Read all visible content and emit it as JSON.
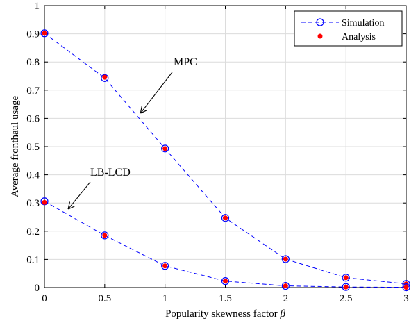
{
  "chart_data": {
    "type": "line",
    "xlabel": "Popularity skewness factor",
    "xlabel_symbol": "β",
    "ylabel": "Average fronthaul usage",
    "xlim": [
      0,
      3
    ],
    "ylim": [
      0,
      1
    ],
    "xticks": [
      "0",
      "0.5",
      "1",
      "1.5",
      "2",
      "2.5",
      "3"
    ],
    "yticks": [
      "0",
      "0.1",
      "0.2",
      "0.3",
      "0.4",
      "0.5",
      "0.6",
      "0.7",
      "0.8",
      "0.9",
      "1"
    ],
    "grid": true,
    "legend_position": "top-right",
    "legend": {
      "simulation": "Simulation",
      "analysis": "Analysis"
    },
    "colors": {
      "simulation": "#0000ff",
      "analysis": "#ff0000"
    },
    "x": [
      0,
      0.5,
      1,
      1.5,
      2,
      2.5,
      3
    ],
    "curves": [
      {
        "label": "MPC",
        "simulation": [
          0.902,
          0.743,
          0.493,
          0.247,
          0.101,
          0.035,
          0.013
        ],
        "analysis": [
          0.902,
          0.746,
          0.493,
          0.247,
          0.101,
          0.035,
          0.013
        ]
      },
      {
        "label": "LB-LCD",
        "simulation": [
          0.306,
          0.185,
          0.077,
          0.023,
          0.006,
          0.002,
          0.001
        ],
        "analysis": [
          0.302,
          0.185,
          0.077,
          0.023,
          0.006,
          0.002,
          0.001
        ]
      }
    ],
    "annotations": [
      {
        "text": "MPC",
        "arrow_to": [
          0.8,
          0.62
        ]
      },
      {
        "text": "LB-LCD",
        "arrow_to": [
          0.2,
          0.28
        ]
      }
    ]
  }
}
